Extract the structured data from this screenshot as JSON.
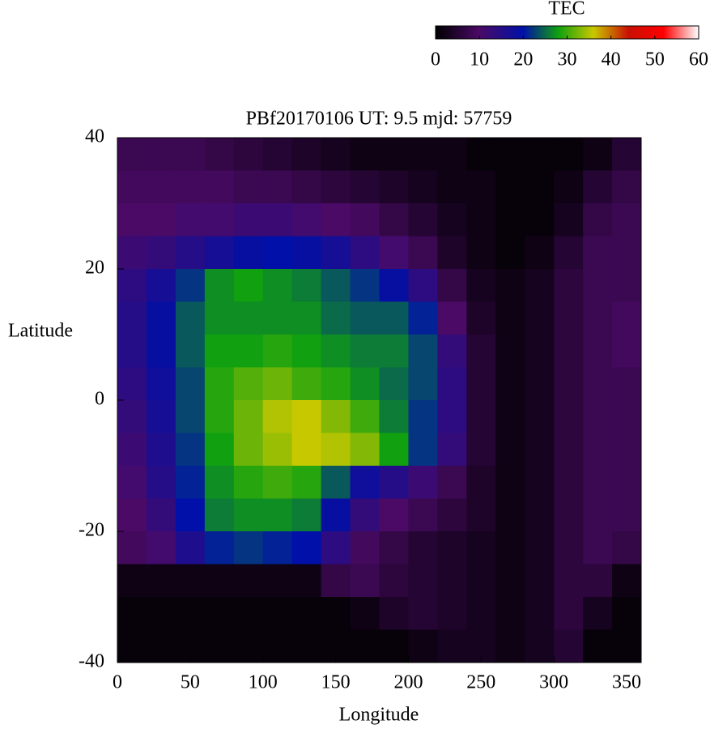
{
  "chart_data": {
    "type": "heatmap",
    "title": "PBf20170106  UT: 9.5  mjd: 57759",
    "x_label": "Longitude",
    "y_label": "Latitude",
    "x": [
      10,
      30,
      50,
      70,
      90,
      110,
      130,
      150,
      170,
      190,
      210,
      230,
      250,
      270,
      290,
      310,
      330,
      350
    ],
    "y": [
      37.5,
      32.5,
      27.5,
      22.5,
      17.5,
      12.5,
      7.5,
      2.5,
      -2.5,
      -7.5,
      -12.5,
      -17.5,
      -22.5,
      -27.5,
      -32.5,
      -37.5
    ],
    "z": [
      [
        8,
        8,
        8,
        7,
        6,
        5,
        4,
        3,
        2,
        2,
        2,
        2,
        1,
        1,
        1,
        1,
        2,
        5
      ],
      [
        9,
        9,
        9,
        9,
        8,
        8,
        7,
        6,
        5,
        4,
        3,
        2,
        2,
        1,
        1,
        2,
        5,
        7
      ],
      [
        10,
        10,
        11,
        11,
        12,
        12,
        11,
        10,
        9,
        7,
        5,
        3,
        2,
        1,
        1,
        3,
        7,
        8
      ],
      [
        12,
        13,
        15,
        17,
        19,
        20,
        19,
        17,
        14,
        11,
        8,
        4,
        2,
        1,
        2,
        5,
        8,
        8
      ],
      [
        14,
        17,
        22,
        27,
        28,
        27,
        26,
        24,
        22,
        19,
        14,
        7,
        3,
        2,
        3,
        6,
        8,
        8
      ],
      [
        15,
        19,
        24,
        27,
        27,
        27,
        27,
        25,
        24,
        24,
        21,
        10,
        4,
        2,
        3,
        6,
        8,
        9
      ],
      [
        15,
        19,
        24,
        28,
        28,
        29,
        28,
        27,
        26,
        26,
        23,
        13,
        5,
        2,
        3,
        6,
        8,
        9
      ],
      [
        14,
        18,
        23,
        29,
        31,
        32,
        30,
        29,
        27,
        25,
        23,
        14,
        5,
        2,
        3,
        6,
        8,
        8
      ],
      [
        13,
        17,
        23,
        29,
        32,
        35,
        36,
        33,
        30,
        26,
        22,
        14,
        5,
        2,
        3,
        6,
        8,
        8
      ],
      [
        12,
        16,
        22,
        28,
        32,
        34,
        36,
        35,
        33,
        28,
        22,
        13,
        5,
        2,
        3,
        6,
        8,
        8
      ],
      [
        11,
        15,
        21,
        27,
        29,
        30,
        29,
        24,
        18,
        15,
        12,
        8,
        4,
        2,
        3,
        6,
        8,
        8
      ],
      [
        10,
        13,
        20,
        26,
        27,
        27,
        26,
        19,
        13,
        10,
        8,
        6,
        4,
        2,
        3,
        6,
        8,
        8
      ],
      [
        9,
        11,
        16,
        21,
        22,
        21,
        20,
        14,
        9,
        7,
        5,
        4,
        3,
        2,
        3,
        6,
        8,
        7
      ],
      [
        2,
        2,
        2,
        2,
        2,
        2,
        2,
        7,
        8,
        6,
        5,
        4,
        3,
        2,
        3,
        6,
        6,
        2
      ],
      [
        1,
        1,
        1,
        1,
        1,
        1,
        1,
        1,
        2,
        4,
        5,
        4,
        3,
        2,
        3,
        6,
        3,
        1
      ],
      [
        1,
        1,
        1,
        1,
        1,
        1,
        1,
        1,
        1,
        1,
        2,
        3,
        3,
        2,
        3,
        5,
        1,
        1
      ]
    ],
    "xlim": [
      0,
      360
    ],
    "xticks": [
      0,
      50,
      100,
      150,
      200,
      250,
      300,
      350
    ],
    "ylim": [
      -40,
      40
    ],
    "yticks": [
      -40,
      -20,
      0,
      20,
      40
    ],
    "colorbar": {
      "label": "TEC",
      "lim": [
        0,
        60
      ],
      "ticks": [
        0,
        10,
        20,
        30,
        40,
        50,
        60
      ]
    },
    "colormap": [
      {
        "value": 0,
        "color": "#000000"
      },
      {
        "value": 10,
        "color": "#4a0a66"
      },
      {
        "value": 20,
        "color": "#0010a8"
      },
      {
        "value": 28,
        "color": "#10a010"
      },
      {
        "value": 36,
        "color": "#c8c800"
      },
      {
        "value": 44,
        "color": "#c81000"
      },
      {
        "value": 52,
        "color": "#ff0000"
      },
      {
        "value": 60,
        "color": "#ffffff"
      }
    ]
  }
}
